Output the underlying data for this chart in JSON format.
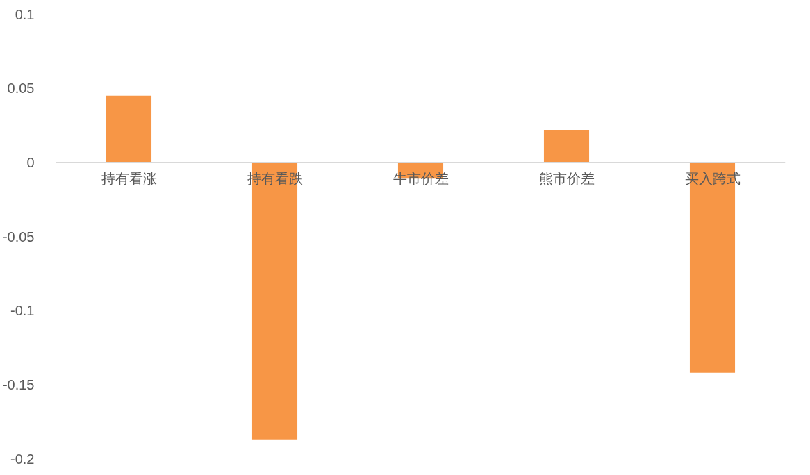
{
  "chart_data": {
    "type": "bar",
    "categories": [
      "持有看涨",
      "持有看跌",
      "牛市价差",
      "熊市价差",
      "买入跨式"
    ],
    "values": [
      0.045,
      -0.187,
      -0.011,
      0.022,
      -0.142
    ],
    "color": "#f79646",
    "ylim": [
      -0.2,
      0.1
    ],
    "yticks": [
      -0.2,
      -0.15,
      -0.1,
      -0.05,
      0,
      0.05,
      0.1
    ],
    "grid": false
  }
}
